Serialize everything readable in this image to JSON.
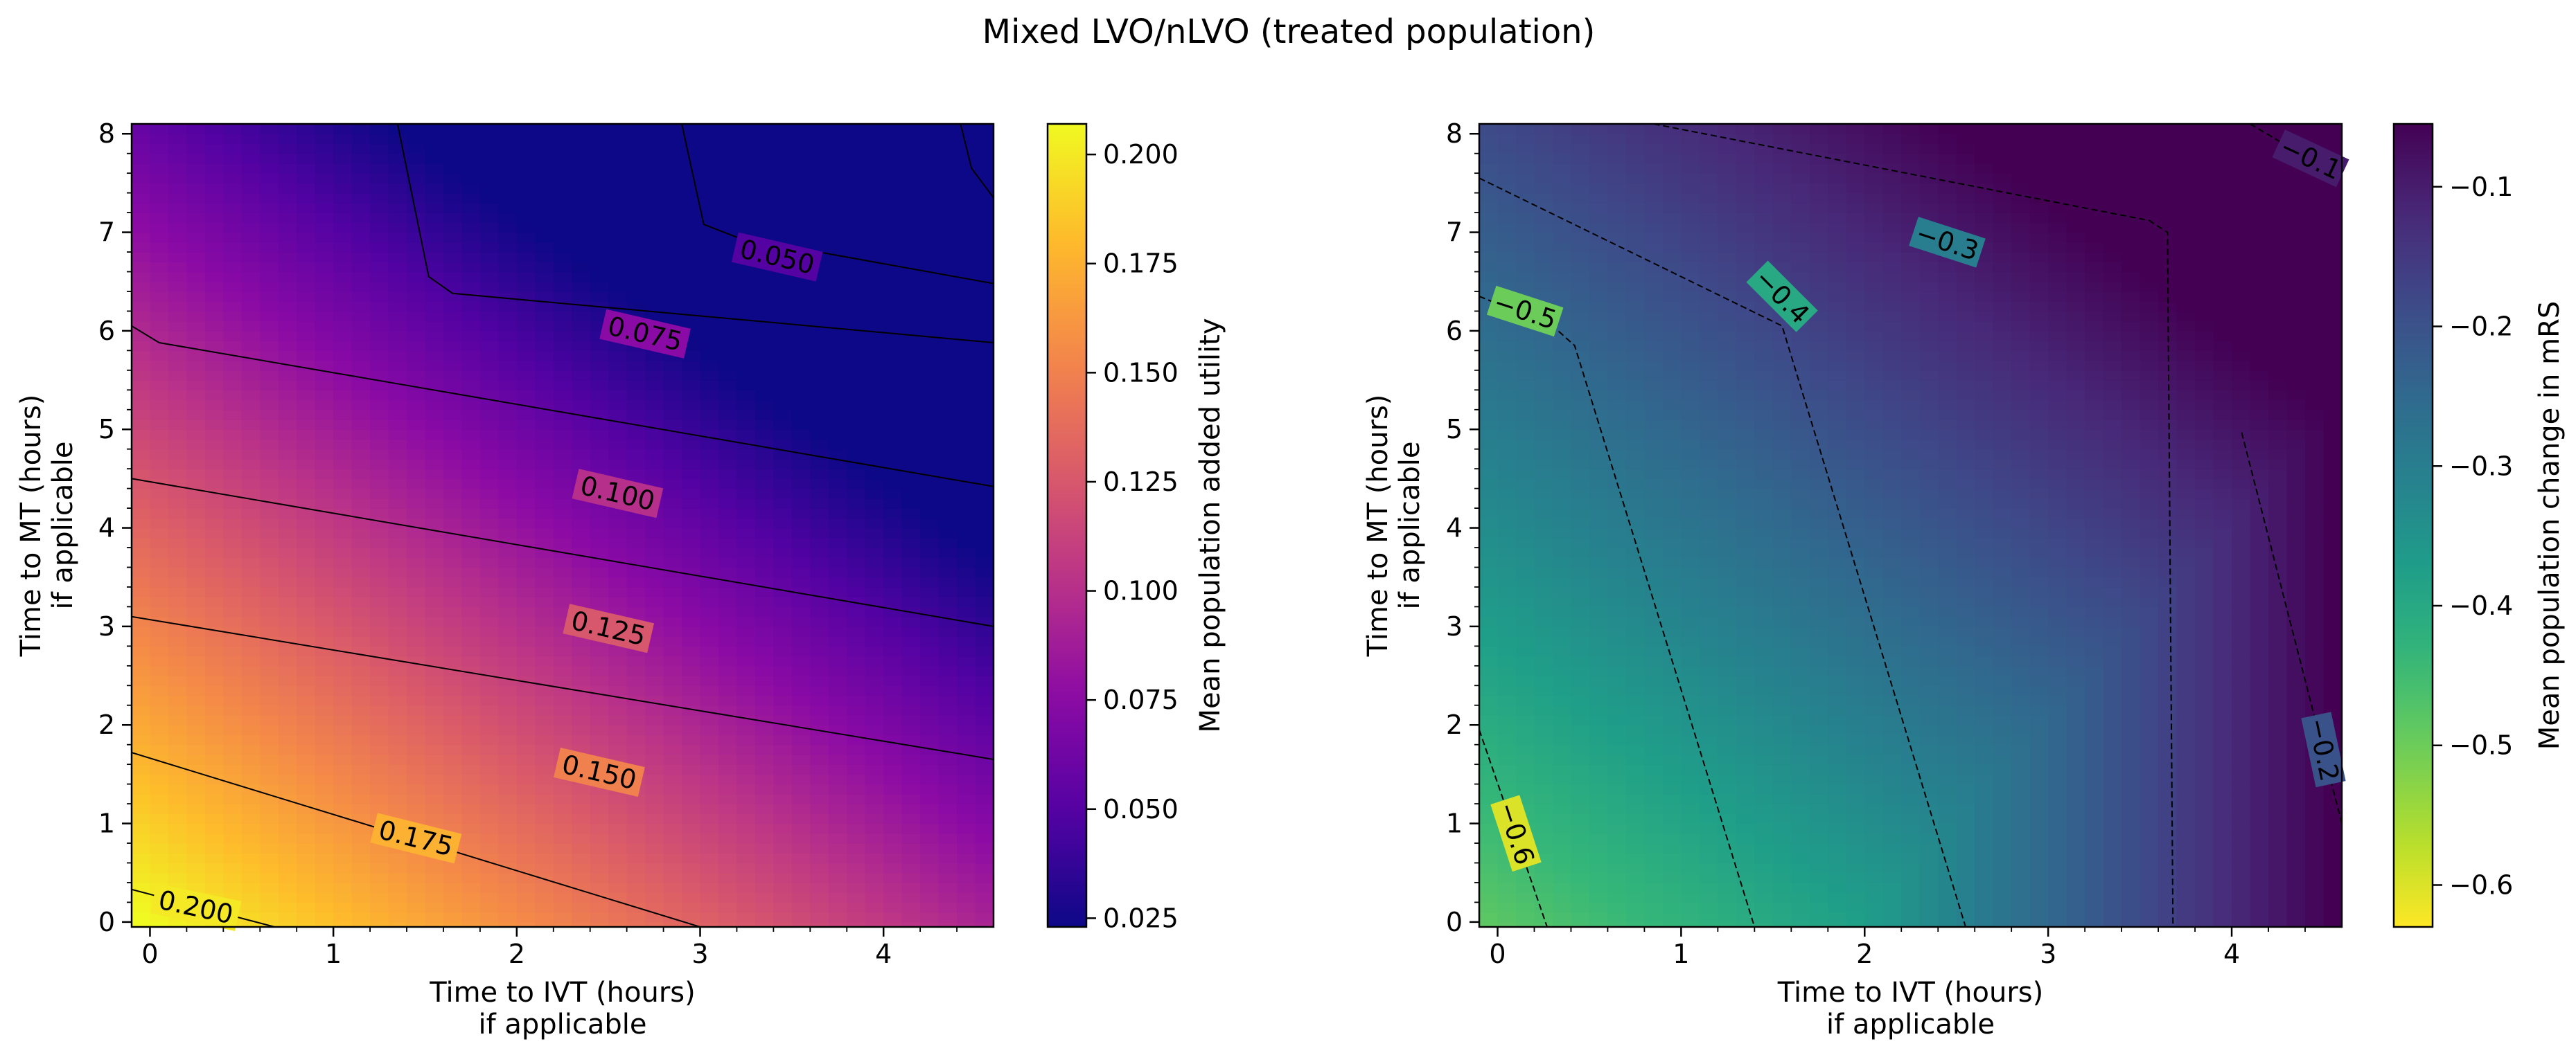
{
  "figure": {
    "title": "Mixed LVO/nLVO (treated population)"
  },
  "chart_data": [
    {
      "type": "heatmap",
      "colormap": "plasma",
      "xlabel": [
        "Time to IVT (hours)",
        "if applicable"
      ],
      "ylabel": [
        "Time to MT (hours)",
        "if applicable"
      ],
      "xlim": [
        -0.1,
        4.6
      ],
      "ylim": [
        -0.05,
        8.1
      ],
      "xticks": [
        0,
        1,
        2,
        3,
        4
      ],
      "xtick_labels": [
        "0",
        "1",
        "2",
        "3",
        "4"
      ],
      "yticks": [
        0,
        1,
        2,
        3,
        4,
        5,
        6,
        7,
        8
      ],
      "ytick_labels": [
        "0",
        "1",
        "2",
        "3",
        "4",
        "5",
        "6",
        "7",
        "8"
      ],
      "colorbar": {
        "label": "Mean population added utility",
        "range": [
          0.023,
          0.207
        ],
        "ticks": [
          0.025,
          0.05,
          0.075,
          0.1,
          0.125,
          0.15,
          0.175,
          0.2
        ],
        "tick_labels": [
          "0.025",
          "0.050",
          "0.075",
          "0.100",
          "0.125",
          "0.150",
          "0.175",
          "0.200"
        ]
      },
      "contours": [
        {
          "level": 0.2,
          "label": "0.200",
          "line_style": "solid",
          "points": [
            [
              -0.1,
              0.33
            ],
            [
              0.68,
              -0.05
            ]
          ],
          "label_at": [
            0.25,
            0.15
          ],
          "label_rotation": 12
        },
        {
          "level": 0.175,
          "label": "0.175",
          "line_style": "solid",
          "points": [
            [
              -0.1,
              1.72
            ],
            [
              3.0,
              -0.05
            ]
          ],
          "label_at": [
            1.45,
            0.85
          ],
          "label_rotation": 14
        },
        {
          "level": 0.15,
          "label": "0.150",
          "line_style": "solid",
          "points": [
            [
              -0.1,
              3.1
            ],
            [
              4.6,
              1.65
            ]
          ],
          "label_at": [
            2.45,
            1.52
          ],
          "label_rotation": 13
        },
        {
          "level": 0.125,
          "label": "0.125",
          "line_style": "solid",
          "points": [
            [
              -0.1,
              4.5
            ],
            [
              4.6,
              3.0
            ]
          ],
          "label_at": [
            2.5,
            2.98
          ],
          "label_rotation": 13
        },
        {
          "level": 0.1,
          "label": "0.100",
          "line_style": "solid",
          "points": [
            [
              -0.1,
              6.05
            ],
            [
              0.05,
              5.88
            ],
            [
              4.6,
              4.42
            ]
          ],
          "label_at": [
            2.55,
            4.35
          ],
          "label_rotation": 13
        },
        {
          "level": 0.075,
          "label": "0.075",
          "line_style": "solid",
          "points": [
            [
              1.35,
              8.1
            ],
            [
              1.52,
              6.55
            ],
            [
              1.65,
              6.38
            ],
            [
              4.6,
              5.88
            ]
          ],
          "label_at": [
            2.7,
            5.97
          ],
          "label_rotation": 13
        },
        {
          "level": 0.05,
          "label": "0.050",
          "line_style": "solid",
          "points": [
            [
              2.9,
              8.1
            ],
            [
              3.02,
              7.08
            ],
            [
              3.2,
              6.95
            ],
            [
              4.6,
              6.48
            ]
          ],
          "label_at": [
            3.42,
            6.75
          ],
          "label_rotation": 13
        },
        {
          "level": 0.025,
          "label": "",
          "line_style": "solid",
          "points": [
            [
              4.42,
              8.1
            ],
            [
              4.48,
              7.65
            ],
            [
              4.6,
              7.35
            ]
          ]
        }
      ]
    },
    {
      "type": "heatmap",
      "colormap": "viridis_r",
      "xlabel": [
        "Time to IVT (hours)",
        "if applicable"
      ],
      "ylabel": [
        "Time to MT (hours)",
        "if applicable"
      ],
      "xlim": [
        -0.1,
        4.6
      ],
      "ylim": [
        -0.05,
        8.1
      ],
      "xticks": [
        0,
        1,
        2,
        3,
        4
      ],
      "xtick_labels": [
        "0",
        "1",
        "2",
        "3",
        "4"
      ],
      "yticks": [
        0,
        1,
        2,
        3,
        4,
        5,
        6,
        7,
        8
      ],
      "ytick_labels": [
        "0",
        "1",
        "2",
        "3",
        "4",
        "5",
        "6",
        "7",
        "8"
      ],
      "colorbar": {
        "label": "Mean population change in mRS",
        "range": [
          -0.63,
          -0.055
        ],
        "ticks": [
          -0.6,
          -0.5,
          -0.4,
          -0.3,
          -0.2,
          -0.1
        ],
        "tick_labels": [
          "−0.6",
          "−0.5",
          "−0.4",
          "−0.3",
          "−0.2",
          "−0.1"
        ]
      },
      "contours": [
        {
          "level": -0.6,
          "label": "−0.6",
          "line_style": "dashed",
          "points": [
            [
              -0.1,
              1.95
            ],
            [
              0.27,
              -0.05
            ]
          ],
          "label_at": [
            0.1,
            0.9
          ],
          "label_rotation": 72
        },
        {
          "level": -0.5,
          "label": "−0.5",
          "line_style": "dashed",
          "points": [
            [
              -0.1,
              6.35
            ],
            [
              0.3,
              6.05
            ],
            [
              0.42,
              5.85
            ],
            [
              1.4,
              -0.05
            ]
          ],
          "label_at": [
            0.15,
            6.2
          ],
          "label_rotation": 18
        },
        {
          "level": -0.4,
          "label": "−0.4",
          "line_style": "dashed",
          "points": [
            [
              -0.1,
              7.55
            ],
            [
              1.55,
              6.05
            ],
            [
              2.55,
              -0.05
            ]
          ],
          "label_at": [
            1.55,
            6.35
          ],
          "label_rotation": 45
        },
        {
          "level": -0.3,
          "label": "−0.3",
          "line_style": "dashed",
          "points": [
            [
              0.85,
              8.1
            ],
            [
              3.55,
              7.12
            ],
            [
              3.65,
              7.0
            ],
            [
              3.68,
              -0.05
            ]
          ],
          "label_at": [
            2.45,
            6.9
          ],
          "label_rotation": 18
        },
        {
          "level": -0.2,
          "label": "−0.2",
          "line_style": "dashed",
          "points": [
            [
              4.6,
              1.0
            ],
            [
              4.05,
              5.0
            ]
          ],
          "label_at": [
            4.5,
            1.75
          ],
          "label_rotation": 78
        },
        {
          "level": -0.1,
          "label": "−0.1",
          "line_style": "dashed",
          "points": [
            [
              4.1,
              8.1
            ],
            [
              4.6,
              7.55
            ]
          ],
          "label_at": [
            4.43,
            7.75
          ],
          "label_rotation": 25
        }
      ]
    }
  ]
}
